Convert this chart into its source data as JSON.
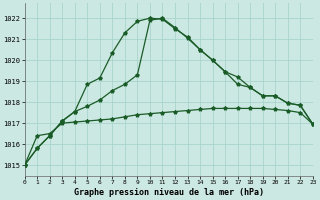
{
  "title": "Graphe pression niveau de la mer (hPa)",
  "background_color": "#cce8e2",
  "grid_color": "#a8d4cc",
  "line_color": "#1a5c28",
  "ylim": [
    1014.5,
    1022.7
  ],
  "xlim": [
    0,
    23
  ],
  "yticks": [
    1015,
    1016,
    1017,
    1018,
    1019,
    1020,
    1021,
    1022
  ],
  "curve1_y": [
    1015.0,
    1015.8,
    1016.4,
    1017.1,
    1017.55,
    1018.85,
    1019.15,
    1020.35,
    1021.3,
    1021.85,
    1022.0,
    1021.95,
    1021.5,
    1021.1,
    1020.5,
    1020.0,
    1019.45,
    1019.2,
    1018.7,
    1018.3,
    1018.3,
    1017.95,
    1017.85,
    1016.95
  ],
  "curve2_y": [
    1015.0,
    1015.8,
    1016.4,
    1017.1,
    1017.55,
    1017.8,
    1018.1,
    1018.55,
    1018.85,
    1019.3,
    1021.9,
    1022.0,
    1021.55,
    1021.05,
    1020.5,
    1020.0,
    1019.45,
    1018.85,
    1018.7,
    1018.3,
    1018.3,
    1017.95,
    1017.85,
    1016.95
  ],
  "curve3_y": [
    1015.0,
    1016.4,
    1016.5,
    1017.0,
    1017.05,
    1017.1,
    1017.15,
    1017.2,
    1017.3,
    1017.4,
    1017.45,
    1017.5,
    1017.55,
    1017.6,
    1017.65,
    1017.7,
    1017.7,
    1017.7,
    1017.7,
    1017.7,
    1017.65,
    1017.6,
    1017.5,
    1016.95
  ]
}
